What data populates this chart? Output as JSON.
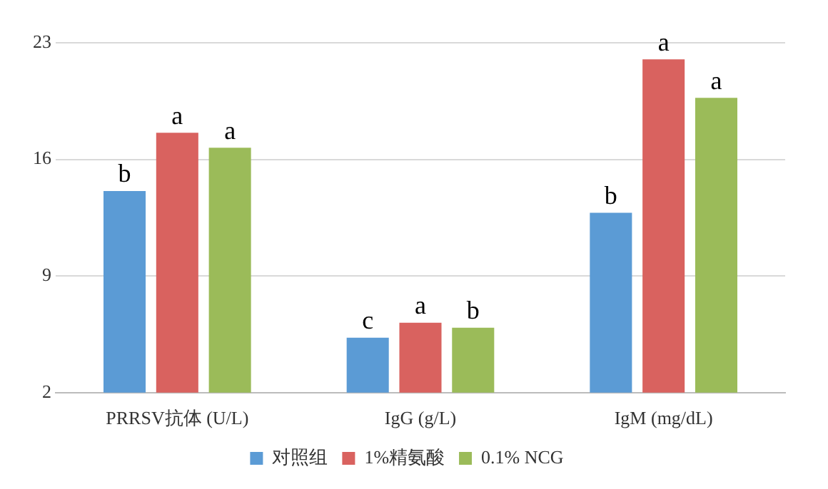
{
  "chart_data": {
    "type": "bar",
    "categories": [
      "PRRSV抗体 (U/L)",
      "IgG (g/L)",
      "IgM (mg/dL)"
    ],
    "series": [
      {
        "name": "对照组",
        "color": "#5b9bd5",
        "values": [
          14.1,
          5.3,
          12.8
        ],
        "value_labels": [
          "b",
          "c",
          "b"
        ]
      },
      {
        "name": "1%精氨酸",
        "color": "#d9625f",
        "values": [
          17.6,
          6.2,
          22
        ],
        "value_labels": [
          "a",
          "a",
          "a"
        ]
      },
      {
        "name": "0.1% NCG",
        "color": "#9bbb59",
        "values": [
          16.7,
          5.9,
          19.7
        ],
        "value_labels": [
          "a",
          "b",
          "a"
        ]
      }
    ],
    "ylim": [
      2,
      23
    ],
    "yticks": [
      2,
      9,
      16,
      23
    ],
    "grid": "y",
    "legend": "bottom"
  }
}
